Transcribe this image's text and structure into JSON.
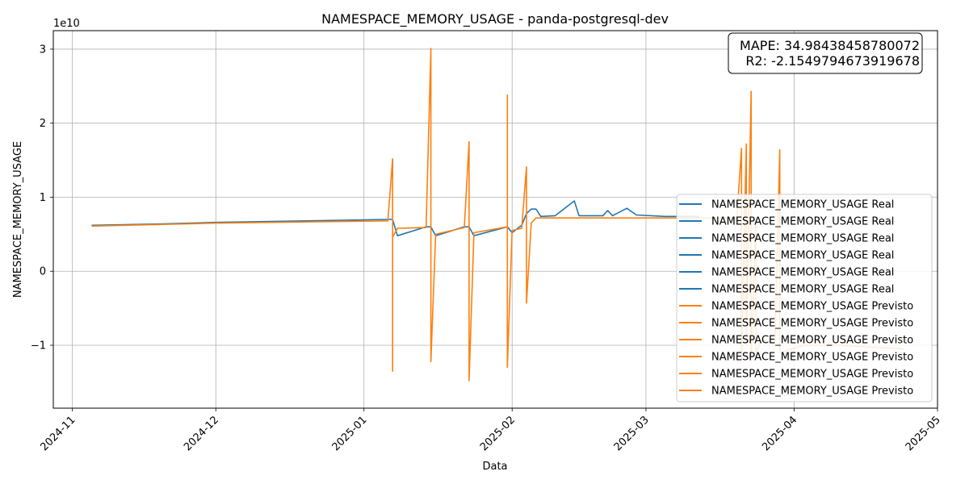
{
  "chart_data": {
    "type": "line",
    "title": "NAMESPACE_MEMORY_USAGE - panda-postgresql-dev",
    "xlabel": "Data",
    "ylabel": "NAMESPACE_MEMORY_USAGE",
    "y_offset_label": "1e10",
    "x_range": [
      "2024-10-28",
      "2025-05-01"
    ],
    "y_range": [
      -1.85,
      3.25
    ],
    "y_unit_scale": 10000000000,
    "x_ticks": [
      "2024-11",
      "2024-12",
      "2025-01",
      "2025-02",
      "2025-03",
      "2025-04",
      "2025-05"
    ],
    "y_ticks": [
      3,
      2,
      1,
      0,
      -1
    ],
    "y_tick_labels": [
      "3",
      "2",
      "1",
      "0",
      "−1"
    ],
    "grid": true,
    "metrics": {
      "mape": "MAPE: 34.98438458780072",
      "r2": "R2: -2.1549794673919678"
    },
    "colors": {
      "real": "#1f77b4",
      "forecast": "#ff7f0e",
      "grid": "#b0b0b0"
    },
    "legend_position": "lower right",
    "legend": [
      "NAMESPACE_MEMORY_USAGE Real",
      "NAMESPACE_MEMORY_USAGE Real",
      "NAMESPACE_MEMORY_USAGE Real",
      "NAMESPACE_MEMORY_USAGE Real",
      "NAMESPACE_MEMORY_USAGE Real",
      "NAMESPACE_MEMORY_USAGE Real",
      "NAMESPACE_MEMORY_USAGE Previsto",
      "NAMESPACE_MEMORY_USAGE Previsto",
      "NAMESPACE_MEMORY_USAGE Previsto",
      "NAMESPACE_MEMORY_USAGE Previsto",
      "NAMESPACE_MEMORY_USAGE Previsto",
      "NAMESPACE_MEMORY_USAGE Previsto"
    ],
    "series": [
      {
        "name": "NAMESPACE_MEMORY_USAGE Real",
        "x": [
          "2024-11-05",
          "2024-11-20",
          "2024-12-01",
          "2024-12-20",
          "2025-01-06",
          "2025-01-07",
          "2025-01-08",
          "2025-01-14",
          "2025-01-15",
          "2025-01-16",
          "2025-01-22",
          "2025-01-23",
          "2025-01-24",
          "2025-01-31",
          "2025-02-01",
          "2025-02-03",
          "2025-02-04",
          "2025-02-05",
          "2025-02-06",
          "2025-02-07",
          "2025-02-10",
          "2025-02-14",
          "2025-02-15",
          "2025-02-20",
          "2025-02-21",
          "2025-02-22",
          "2025-02-25",
          "2025-02-27",
          "2025-03-05",
          "2025-03-12"
        ],
        "y": [
          0.62,
          0.64,
          0.66,
          0.68,
          0.7,
          0.7,
          0.48,
          0.6,
          0.6,
          0.48,
          0.6,
          0.6,
          0.48,
          0.6,
          0.52,
          0.62,
          0.78,
          0.84,
          0.84,
          0.74,
          0.75,
          0.95,
          0.75,
          0.75,
          0.82,
          0.75,
          0.85,
          0.76,
          0.74,
          0.74
        ]
      },
      {
        "name": "NAMESPACE_MEMORY_USAGE Previsto",
        "x": [
          "2024-11-05",
          "2024-12-01",
          "2025-01-06",
          "2025-01-07",
          "2025-01-07",
          "2025-01-07",
          "2025-01-08",
          "2025-01-14",
          "2025-01-15",
          "2025-01-15",
          "2025-01-16",
          "2025-01-22",
          "2025-01-23",
          "2025-01-23",
          "2025-01-24",
          "2025-01-31",
          "2025-01-31",
          "2025-01-31",
          "2025-02-01",
          "2025-02-03",
          "2025-02-04",
          "2025-02-04",
          "2025-02-05",
          "2025-02-06",
          "2025-02-08",
          "2025-02-15",
          "2025-03-01",
          "2025-03-15",
          "2025-03-20",
          "2025-03-21",
          "2025-03-21",
          "2025-03-22",
          "2025-03-22",
          "2025-03-23",
          "2025-03-23",
          "2025-03-24",
          "2025-03-24",
          "2025-03-25",
          "2025-03-28",
          "2025-03-29",
          "2025-03-29",
          "2025-04-03",
          "2025-04-10",
          "2025-04-24"
        ],
        "y": [
          0.61,
          0.65,
          0.68,
          1.52,
          -1.35,
          0.46,
          0.58,
          0.59,
          3.01,
          -1.22,
          0.5,
          0.59,
          1.75,
          -1.48,
          0.52,
          0.6,
          2.38,
          -1.3,
          0.55,
          0.58,
          1.41,
          -0.43,
          0.65,
          0.72,
          0.72,
          0.72,
          0.72,
          0.72,
          0.72,
          1.66,
          -1.2,
          1.72,
          -1.0,
          2.43,
          -1.2,
          0.7,
          -1.1,
          -0.95,
          -0.95,
          1.64,
          -1.1,
          -1.0,
          -1.0,
          -1.05
        ]
      }
    ]
  }
}
